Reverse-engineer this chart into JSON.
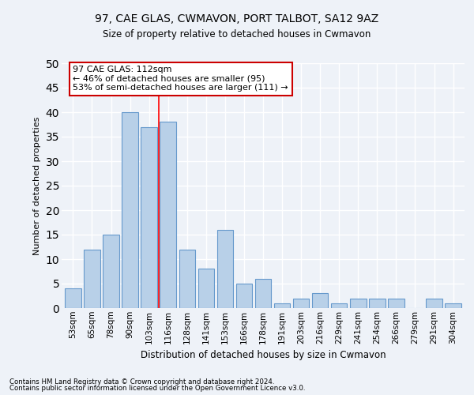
{
  "title": "97, CAE GLAS, CWMAVON, PORT TALBOT, SA12 9AZ",
  "subtitle": "Size of property relative to detached houses in Cwmavon",
  "xlabel": "Distribution of detached houses by size in Cwmavon",
  "ylabel": "Number of detached properties",
  "bar_color": "#b8d0e8",
  "bar_edge_color": "#6699cc",
  "categories": [
    "53sqm",
    "65sqm",
    "78sqm",
    "90sqm",
    "103sqm",
    "116sqm",
    "128sqm",
    "141sqm",
    "153sqm",
    "166sqm",
    "178sqm",
    "191sqm",
    "203sqm",
    "216sqm",
    "229sqm",
    "241sqm",
    "254sqm",
    "266sqm",
    "279sqm",
    "291sqm",
    "304sqm"
  ],
  "values": [
    4,
    12,
    15,
    40,
    37,
    38,
    12,
    8,
    16,
    5,
    6,
    1,
    2,
    3,
    1,
    2,
    2,
    2,
    0,
    2,
    1
  ],
  "ylim": [
    0,
    50
  ],
  "yticks": [
    0,
    5,
    10,
    15,
    20,
    25,
    30,
    35,
    40,
    45,
    50
  ],
  "red_line_x": 4.5,
  "annotation_text": "97 CAE GLAS: 112sqm\n← 46% of detached houses are smaller (95)\n53% of semi-detached houses are larger (111) →",
  "annotation_box_color": "#ffffff",
  "annotation_box_edge_color": "#cc0000",
  "footer_line1": "Contains HM Land Registry data © Crown copyright and database right 2024.",
  "footer_line2": "Contains public sector information licensed under the Open Government Licence v3.0.",
  "background_color": "#eef2f8",
  "grid_color": "#ffffff"
}
